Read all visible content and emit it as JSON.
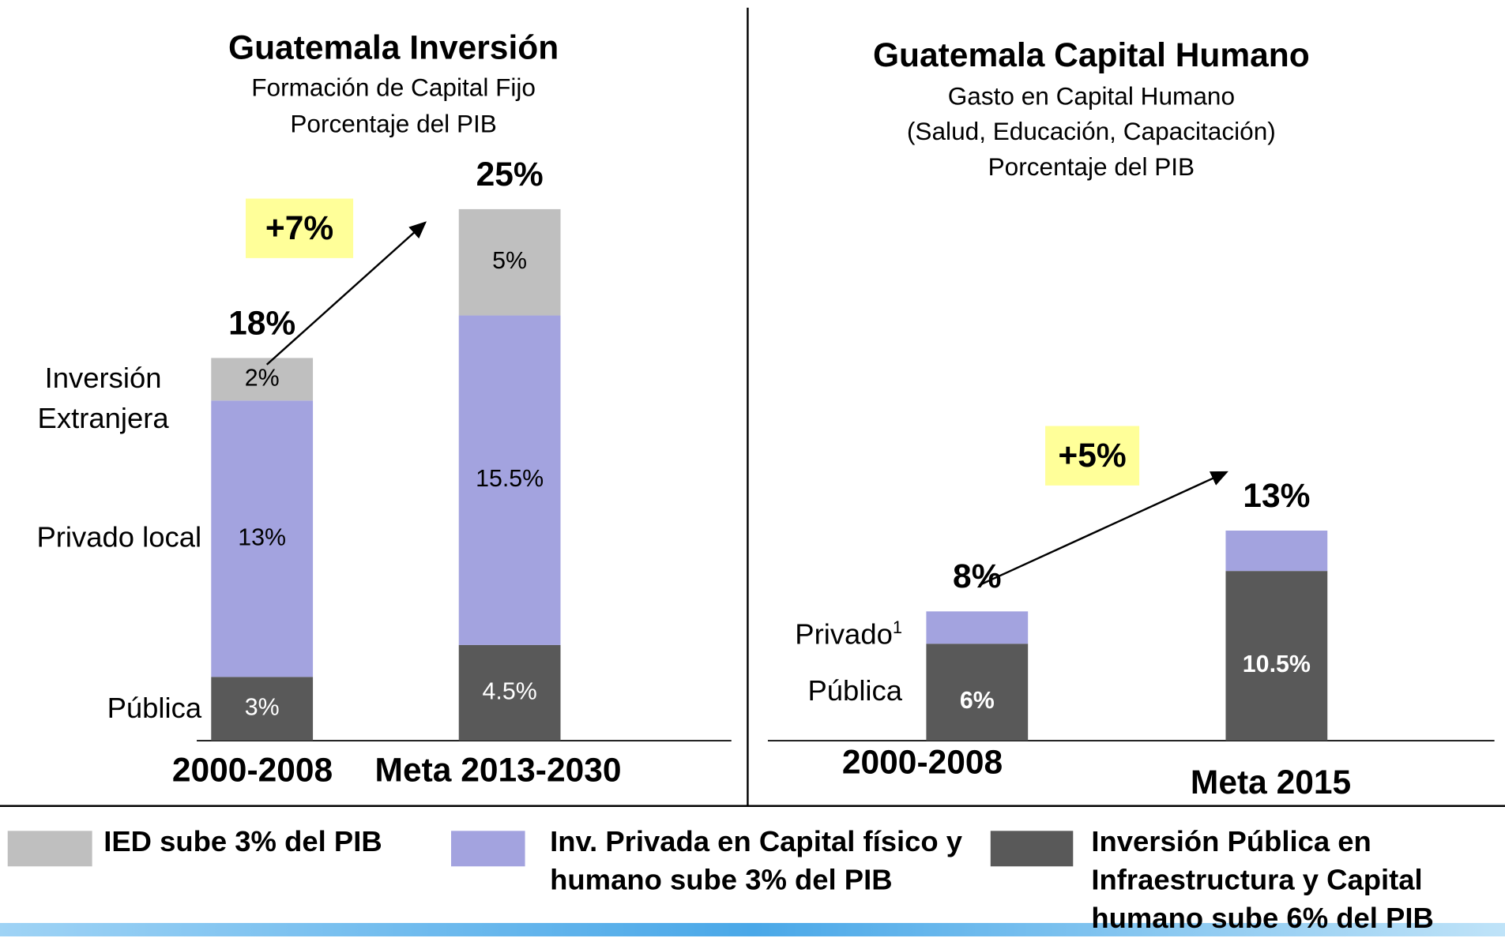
{
  "chart_data": [
    {
      "type": "bar",
      "stacked": true,
      "title": "Guatemala Inversión",
      "subtitle": [
        "Formación de Capital Fijo",
        "Porcentaje del PIB"
      ],
      "categories": [
        "2000-2008",
        "Meta 2013-2030"
      ],
      "series": [
        {
          "name": "Pública",
          "color": "#595959",
          "values": [
            3,
            4.5
          ],
          "value_labels": [
            "3%",
            "4.5%"
          ]
        },
        {
          "name": "Privado local",
          "color": "#a3a3df",
          "values": [
            13,
            15.5
          ],
          "value_labels": [
            "13%",
            "15.5%"
          ]
        },
        {
          "name": "Inversión Extranjera",
          "color": "#bfbfbf",
          "values": [
            2,
            5
          ],
          "value_labels": [
            "2%",
            "5%"
          ]
        }
      ],
      "totals": [
        18,
        25
      ],
      "total_labels": [
        "18%",
        "25%"
      ],
      "annotation": "+7%"
    },
    {
      "type": "bar",
      "stacked": true,
      "title": "Guatemala Capital Humano",
      "subtitle": [
        "Gasto en Capital Humano",
        "(Salud, Educación, Capacitación)",
        "Porcentaje del PIB"
      ],
      "categories": [
        "2000-2008",
        "Meta 2015"
      ],
      "series": [
        {
          "name": "Pública",
          "color": "#595959",
          "values": [
            6,
            10.5
          ],
          "value_labels": [
            "6%",
            "10.5%"
          ]
        },
        {
          "name": "Privado",
          "name_note": "1",
          "color": "#a3a3df",
          "values": [
            2,
            2.5
          ]
        }
      ],
      "totals": [
        8,
        13
      ],
      "total_labels": [
        "8%",
        "13%"
      ],
      "annotation": "+5%"
    }
  ],
  "legend": [
    {
      "label": "IED sube 3% del PIB",
      "color": "#bfbfbf"
    },
    {
      "label": "Inv. Privada en Capital físico y humano sube 3% del PIB",
      "color": "#a3a3df"
    },
    {
      "label": "Inversión Pública en Infraestructura y Capital humano sube 6% del PIB",
      "color": "#595959"
    }
  ]
}
